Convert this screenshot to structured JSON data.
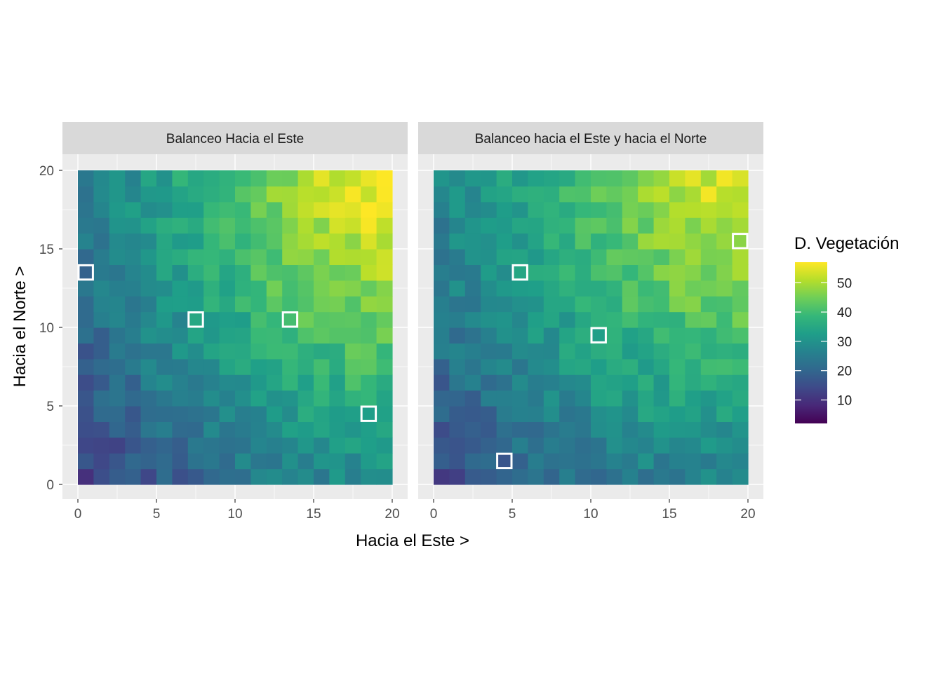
{
  "chart_data": {
    "type": "heatmap",
    "xlabel": "Hacia el Este >",
    "ylabel": "Hacia el Norte >",
    "xlim": [
      0,
      20
    ],
    "ylim": [
      0,
      20
    ],
    "x_ticks": [
      "0",
      "5",
      "10",
      "15",
      "20"
    ],
    "y_ticks": [
      "0",
      "5",
      "10",
      "15",
      "20"
    ],
    "grid": true,
    "legend": {
      "title": "D. Vegetación",
      "position": "right",
      "range": [
        2,
        57
      ],
      "ticks": [
        "10",
        "20",
        "30",
        "40",
        "50"
      ],
      "tick_values": [
        10,
        20,
        30,
        40,
        50
      ]
    },
    "palette": [
      "#440154",
      "#482878",
      "#3e4a89",
      "#31688e",
      "#26828e",
      "#1f9e89",
      "#35b779",
      "#6ece58",
      "#b5de2b",
      "#fde725"
    ],
    "marker_color": "#ffffff",
    "grid_size": 20,
    "panels": [
      {
        "title": "Balanceo Hacia el Este",
        "tilt": "east",
        "sample_cells": [
          [
            0.5,
            13.5
          ],
          [
            7.5,
            10.5
          ],
          [
            13.5,
            10.5
          ],
          [
            18.5,
            4.5
          ]
        ]
      },
      {
        "title": "Balanceo hacia el Este y hacia el Norte",
        "tilt": "east-north",
        "sample_cells": [
          [
            19.5,
            15.5
          ],
          [
            5.5,
            13.5
          ],
          [
            10.5,
            9.5
          ],
          [
            4.5,
            1.5
          ]
        ]
      }
    ]
  }
}
